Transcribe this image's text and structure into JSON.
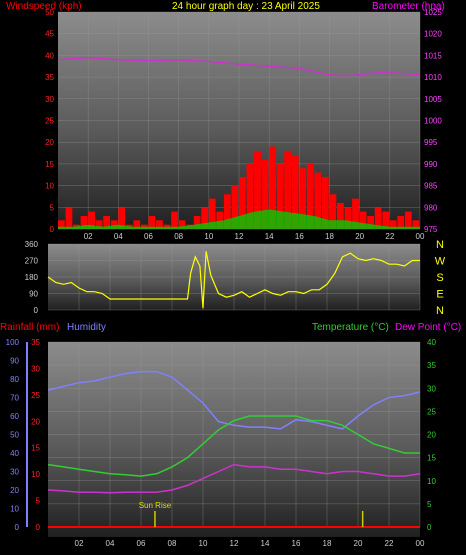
{
  "header": {
    "left_title": "Windspeed (kph)",
    "center_title": "24 hour graph day : 23 April 2025",
    "right_title": "Barometer (hpa)"
  },
  "bottom_header": {
    "rainfall_label": "Rainfall (mm)",
    "humidity_label": "Humidity",
    "temperature_label": "Temperature (°C)",
    "dewpoint_label": "Dew Point (°C)"
  },
  "annotations": {
    "sunrise": "Sun Rise"
  },
  "compass": [
    "N",
    "W",
    "S",
    "E",
    "N"
  ],
  "colors": {
    "wind": "#ff0000",
    "gust": "#ff0000",
    "wind_avg": "#00cc00",
    "wind_low": "#ffffff",
    "barometer": "#cc33cc",
    "direction": "#ffff00",
    "humidity": "#8080ff",
    "temperature": "#33cc33",
    "dewpoint": "#cc33cc",
    "rainfall": "#ff0000",
    "marker": "#cccc00"
  },
  "chart_data": [
    {
      "type": "line",
      "name": "wind-barometer",
      "title": "24 hour graph day : 23 April 2025",
      "xlabel": "",
      "x_ticks": [
        "02",
        "04",
        "06",
        "08",
        "10",
        "12",
        "14",
        "16",
        "18",
        "20",
        "22",
        "00"
      ],
      "x_range": [
        0,
        24
      ],
      "ylabel_left": "Windspeed (kph)",
      "ylim_left": [
        0,
        50
      ],
      "yticks_left": [
        0,
        5,
        10,
        15,
        20,
        25,
        30,
        35,
        40,
        45,
        50
      ],
      "ylabel_right": "Barometer (hpa)",
      "ylim_right": [
        975,
        1025
      ],
      "yticks_right": [
        975,
        980,
        985,
        990,
        995,
        1000,
        1005,
        1010,
        1015,
        1020,
        1025
      ],
      "grid": true,
      "series": [
        {
          "name": "Barometer (hpa)",
          "axis": "right",
          "x": [
            0,
            2,
            4,
            6,
            8,
            10,
            12,
            14,
            16,
            18,
            19,
            20,
            21,
            22,
            23,
            24
          ],
          "y": [
            1014,
            1014.5,
            1014,
            1013.8,
            1014,
            1013.6,
            1013,
            1012.5,
            1012,
            1010.5,
            1010.3,
            1010.5,
            1011,
            1011,
            1010.8,
            1010.6
          ]
        },
        {
          "name": "Gust (kph)",
          "axis": "left",
          "x": [
            0,
            0.5,
            1,
            1.5,
            2,
            2.5,
            3,
            3.5,
            4,
            4.5,
            5,
            5.5,
            6,
            6.5,
            7,
            7.5,
            8,
            8.5,
            9,
            9.5,
            10,
            10.5,
            11,
            11.5,
            12,
            12.5,
            13,
            13.5,
            14,
            14.5,
            15,
            15.5,
            16,
            16.5,
            17,
            17.5,
            18,
            18.5,
            19,
            19.5,
            20,
            20.5,
            21,
            21.5,
            22,
            22.5,
            23,
            23.5,
            24
          ],
          "y": [
            2,
            5,
            1,
            3,
            4,
            2,
            3,
            2,
            5,
            1,
            2,
            1,
            3,
            2,
            1,
            4,
            2,
            1,
            3,
            5,
            7,
            4,
            8,
            10,
            12,
            15,
            18,
            16,
            19,
            15,
            18,
            17,
            14,
            15,
            13,
            12,
            8,
            6,
            5,
            7,
            4,
            3,
            5,
            4,
            2,
            3,
            4,
            2,
            1
          ]
        },
        {
          "name": "Average (kph)",
          "axis": "left",
          "x": [
            0,
            1,
            2,
            3,
            4,
            5,
            6,
            7,
            8,
            9,
            10,
            11,
            12,
            13,
            14,
            15,
            16,
            17,
            18,
            19,
            20,
            21,
            22,
            23,
            24
          ],
          "y": [
            0.5,
            0.5,
            1,
            0.5,
            1,
            0.5,
            0.5,
            0.5,
            0.5,
            1,
            1.5,
            2,
            3,
            4,
            4.5,
            4,
            3.5,
            3,
            2,
            2,
            1.5,
            1,
            0.5,
            0.5,
            0.5
          ]
        }
      ]
    },
    {
      "type": "line",
      "name": "wind-direction",
      "x_ticks": [
        "02",
        "04",
        "06",
        "08",
        "10",
        "12",
        "14",
        "16",
        "18",
        "20",
        "22",
        "00"
      ],
      "x_range": [
        0,
        24
      ],
      "ylim": [
        0,
        360
      ],
      "yticks": [
        0,
        90,
        180,
        270,
        360
      ],
      "grid": true,
      "series": [
        {
          "name": "Direction (deg)",
          "x": [
            0,
            0.5,
            1,
            1.5,
            2,
            2.5,
            3,
            3.5,
            4,
            4.5,
            5,
            5.5,
            6,
            6.5,
            7,
            7.5,
            8,
            8.5,
            9,
            9.2,
            9.5,
            9.8,
            10,
            10.2,
            10.5,
            11,
            11.5,
            12,
            12.5,
            13,
            13.5,
            14,
            14.5,
            15,
            15.5,
            16,
            16.5,
            17,
            17.5,
            18,
            18.5,
            19,
            19.5,
            20,
            20.5,
            21,
            21.5,
            22,
            22.5,
            23,
            23.5,
            24
          ],
          "y": [
            180,
            150,
            140,
            150,
            120,
            100,
            100,
            90,
            60,
            60,
            60,
            60,
            60,
            60,
            60,
            60,
            60,
            60,
            60,
            200,
            290,
            240,
            10,
            320,
            190,
            90,
            70,
            80,
            100,
            70,
            90,
            110,
            90,
            80,
            100,
            100,
            90,
            110,
            110,
            140,
            200,
            290,
            310,
            280,
            270,
            280,
            270,
            250,
            250,
            240,
            270,
            270
          ]
        }
      ]
    },
    {
      "type": "line",
      "name": "temp-humidity-rain",
      "x_ticks": [
        "02",
        "04",
        "06",
        "08",
        "10",
        "12",
        "14",
        "16",
        "18",
        "20",
        "22",
        "00"
      ],
      "x_range": [
        0,
        24
      ],
      "ylabel_left_outer": "Humidity",
      "ylim_humidity": [
        0,
        100
      ],
      "yticks_humidity": [
        0,
        10,
        20,
        30,
        40,
        50,
        60,
        70,
        80,
        90,
        100
      ],
      "ylabel_left_inner": "Rainfall (mm)",
      "ylim_rain": [
        0,
        35
      ],
      "yticks_rain": [
        0,
        5,
        10,
        15,
        20,
        25,
        30,
        35
      ],
      "ylabel_right": "Temperature (°C)",
      "ylim_right": [
        0,
        40
      ],
      "yticks_right": [
        0,
        5,
        10,
        15,
        20,
        25,
        30,
        35,
        40
      ],
      "grid": true,
      "series": [
        {
          "name": "Humidity",
          "axis": "humidity",
          "x": [
            0,
            1,
            2,
            3,
            4,
            5,
            6,
            7,
            8,
            9,
            10,
            11,
            12,
            13,
            14,
            15,
            16,
            17,
            18,
            19,
            20,
            21,
            22,
            23,
            24
          ],
          "y": [
            74,
            76,
            78,
            79,
            81,
            83,
            84,
            84,
            81,
            74,
            67,
            57,
            55,
            54,
            54,
            53,
            58,
            57,
            55,
            53,
            60,
            66,
            70,
            71,
            73
          ]
        },
        {
          "name": "Temperature (°C)",
          "axis": "right",
          "x": [
            0,
            1,
            2,
            3,
            4,
            5,
            6,
            7,
            8,
            9,
            10,
            11,
            12,
            13,
            14,
            15,
            16,
            17,
            18,
            19,
            20,
            21,
            22,
            23,
            24
          ],
          "y": [
            13.5,
            13,
            12.5,
            12,
            11.5,
            11.3,
            11,
            11.5,
            13,
            15,
            18,
            21,
            23,
            24,
            24,
            24,
            24,
            23,
            23,
            22,
            20,
            18,
            17,
            16,
            16
          ]
        },
        {
          "name": "Dew Point (°C)",
          "axis": "right",
          "x": [
            0,
            1,
            2,
            3,
            4,
            5,
            6,
            7,
            8,
            9,
            10,
            11,
            12,
            13,
            14,
            15,
            16,
            17,
            18,
            19,
            20,
            21,
            22,
            23,
            24
          ],
          "y": [
            8,
            7.8,
            7.5,
            7.5,
            7.4,
            7.5,
            7.5,
            7.5,
            8,
            9,
            10.5,
            12,
            13.5,
            13,
            13,
            12.5,
            12.5,
            12,
            11.5,
            12,
            12,
            11.5,
            11,
            11,
            11.5
          ]
        },
        {
          "name": "Rainfall (mm)",
          "axis": "rain",
          "x": [
            0,
            24
          ],
          "y": [
            0,
            0
          ]
        }
      ],
      "markers": [
        {
          "label": "Sun Rise",
          "x": 6.9
        },
        {
          "label": "",
          "x": 20.3
        }
      ]
    }
  ]
}
